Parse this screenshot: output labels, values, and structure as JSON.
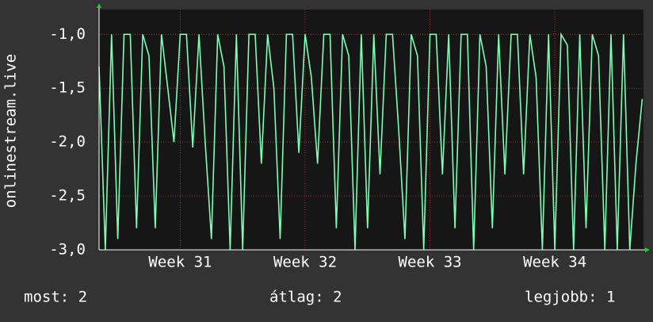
{
  "chart_data": {
    "type": "line",
    "ylabel": "onlinestream.live",
    "x": [
      30.35,
      30.4,
      30.45,
      30.5,
      30.55,
      30.6,
      30.65,
      30.7,
      30.75,
      30.8,
      30.85,
      30.9,
      30.95,
      31.0,
      31.05,
      31.1,
      31.15,
      31.2,
      31.25,
      31.3,
      31.35,
      31.4,
      31.45,
      31.5,
      31.55,
      31.6,
      31.65,
      31.7,
      31.75,
      31.8,
      31.85,
      31.9,
      31.95,
      32.0,
      32.05,
      32.1,
      32.15,
      32.2,
      32.25,
      32.3,
      32.35,
      32.4,
      32.45,
      32.5,
      32.55,
      32.6,
      32.65,
      32.7,
      32.75,
      32.8,
      32.85,
      32.9,
      32.95,
      33.0,
      33.05,
      33.1,
      33.15,
      33.2,
      33.25,
      33.3,
      33.35,
      33.4,
      33.45,
      33.5,
      33.55,
      33.6,
      33.65,
      33.7,
      33.75,
      33.8,
      33.85,
      33.9,
      33.95,
      34.0,
      34.05,
      34.1,
      34.15,
      34.2,
      34.25,
      34.3,
      34.35,
      34.4,
      34.45,
      34.5,
      34.55,
      34.6,
      34.65,
      34.7
    ],
    "series": [
      {
        "color": "#7dfcb4",
        "values": [
          -1.3,
          -3,
          -1,
          -2.9,
          -1,
          -1,
          -2.8,
          -1,
          -1.2,
          -2.8,
          -1,
          -1.5,
          -2.0,
          -1,
          -1,
          -2.05,
          -1,
          -2.0,
          -2.9,
          -1,
          -1.3,
          -3,
          -1,
          -3,
          -1,
          -1,
          -2.2,
          -1,
          -1.5,
          -2.9,
          -1,
          -1,
          -2.1,
          -1,
          -1.4,
          -2.2,
          -1,
          -1,
          -2.8,
          -1,
          -1.2,
          -3,
          -1,
          -2.8,
          -1,
          -2.3,
          -1,
          -1,
          -1.9,
          -2.9,
          -1,
          -1.2,
          -3,
          -1,
          -1,
          -2.3,
          -1,
          -2.8,
          -1,
          -1,
          -3,
          -1,
          -1.3,
          -2.8,
          -1,
          -2.3,
          -1,
          -1,
          -2.3,
          -1,
          -1.4,
          -3,
          -1,
          -3,
          -1,
          -1.1,
          -3,
          -1,
          -2.8,
          -1,
          -1.2,
          -3,
          -1,
          -3,
          -1,
          -3,
          -2.2,
          -1.6
        ]
      }
    ],
    "xlim": [
      30.35,
      34.71
    ],
    "xticks": [
      {
        "value": 31,
        "label": "Week 31"
      },
      {
        "value": 32,
        "label": "Week 32"
      },
      {
        "value": 33,
        "label": "Week 33"
      },
      {
        "value": 34,
        "label": "Week 34"
      }
    ],
    "ylim": [
      -3,
      -0.77
    ],
    "yticks": [
      {
        "value": -3,
        "label": "-3,0"
      },
      {
        "value": -2.5,
        "label": "-2,5"
      },
      {
        "value": -2,
        "label": "-2,0"
      },
      {
        "value": -1.5,
        "label": "-1,5"
      },
      {
        "value": -1,
        "label": "-1,0"
      }
    ],
    "grid": true,
    "grid_color": "#b03030",
    "stats": [
      "most: 2",
      "átlag: 2",
      "legjobb: 1"
    ]
  }
}
